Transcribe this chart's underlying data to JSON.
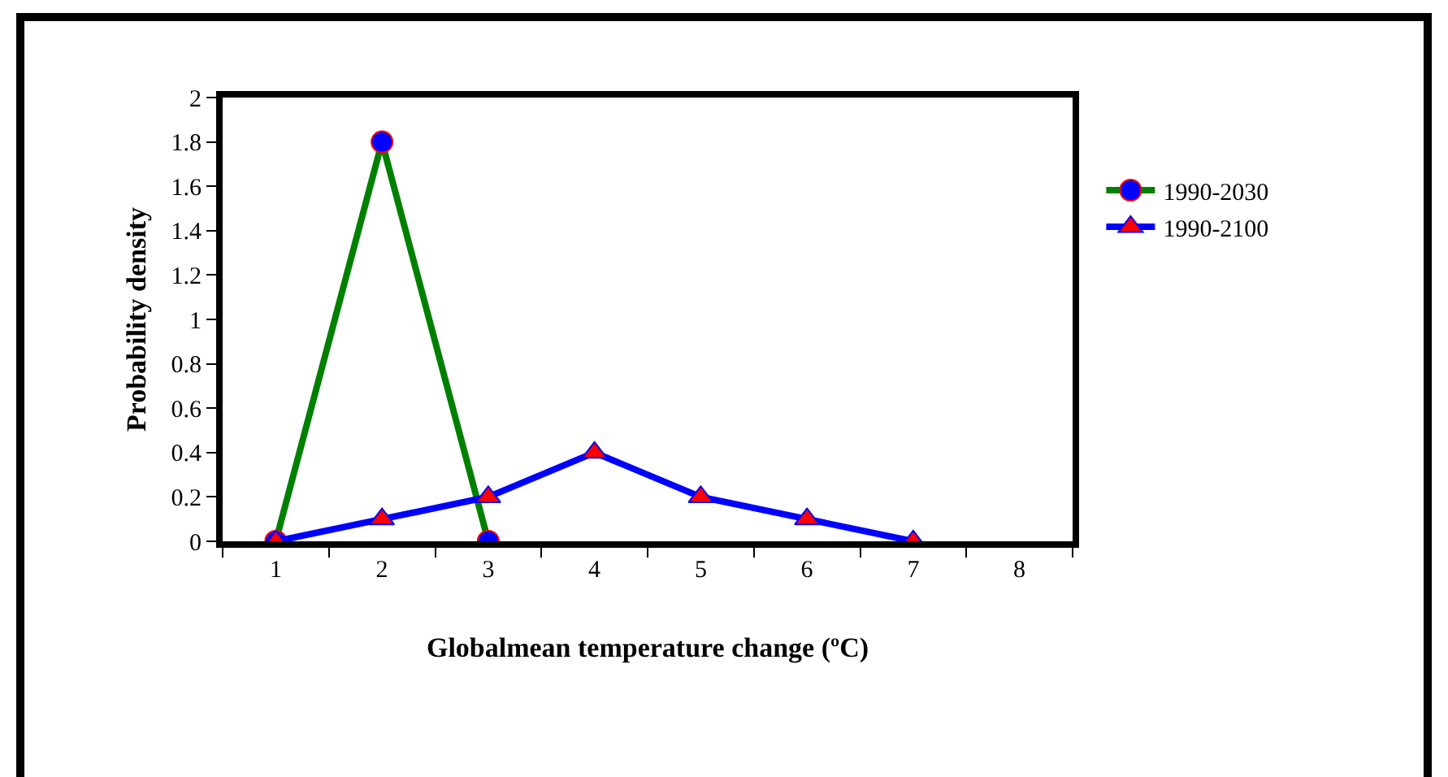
{
  "chart_data": {
    "type": "line",
    "xlabel": "Globalmean temperature change (ºC)",
    "ylabel": "Probability density",
    "categories": [
      "1",
      "2",
      "3",
      "4",
      "5",
      "6",
      "7",
      "8"
    ],
    "series": [
      {
        "name": "1990-2030",
        "color": "#008000",
        "marker": "circle",
        "values": [
          0,
          1.8,
          0,
          null,
          null,
          null,
          null,
          null
        ]
      },
      {
        "name": "1990-2100",
        "color": "#0000ff",
        "marker": "triangle",
        "values": [
          0,
          0.1,
          0.2,
          0.4,
          0.2,
          0.1,
          0,
          null
        ]
      }
    ],
    "ylim": [
      0,
      2
    ],
    "yticks": [
      0,
      0.2,
      0.4,
      0.6,
      0.8,
      1,
      1.2,
      1.4,
      1.6,
      1.8,
      2
    ],
    "grid": false,
    "legend": "right",
    "line_style": "solid"
  }
}
